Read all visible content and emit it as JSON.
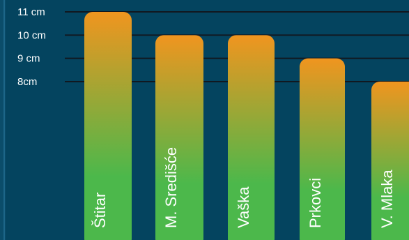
{
  "chart_data": {
    "type": "bar",
    "title": "",
    "xlabel": "",
    "ylabel": "",
    "categories": [
      "Štitar",
      "M. Središće",
      "Vaška",
      "Prkovci",
      "V. Mlaka"
    ],
    "values": [
      11,
      10,
      10,
      9,
      8
    ],
    "ticks": [
      {
        "value": 11,
        "label": "11 cm"
      },
      {
        "value": 10,
        "label": "10 cm"
      },
      {
        "value": 9,
        "label": "9 cm"
      },
      {
        "value": 8,
        "label": "8cm"
      }
    ],
    "grid": true,
    "colors": {
      "background": "#04445f",
      "bar_top": "#f0951f",
      "bar_bottom": "#4cb84b",
      "gridline": "#111820",
      "text": "#ffffff"
    }
  }
}
